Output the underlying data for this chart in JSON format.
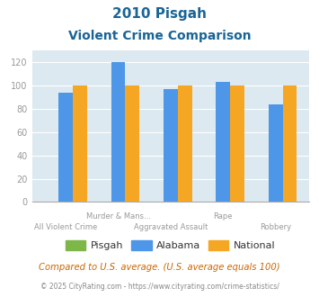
{
  "title_line1": "2010 Pisgah",
  "title_line2": "Violent Crime Comparison",
  "categories": [
    "All Violent Crime",
    "Murder & Mans...",
    "Aggravated Assault",
    "Rape",
    "Robbery"
  ],
  "pisgah_values": [
    0,
    0,
    0,
    0,
    0
  ],
  "alabama_values": [
    94,
    120,
    97,
    103,
    84
  ],
  "national_values": [
    100,
    100,
    100,
    100,
    100
  ],
  "pisgah_color": "#7db748",
  "alabama_color": "#4d96e8",
  "national_color": "#f5a623",
  "ylim": [
    0,
    130
  ],
  "yticks": [
    0,
    20,
    40,
    60,
    80,
    100,
    120
  ],
  "legend_labels": [
    "Pisgah",
    "Alabama",
    "National"
  ],
  "footnote1": "Compared to U.S. average. (U.S. average equals 100)",
  "footnote2": "© 2025 CityRating.com - https://www.cityrating.com/crime-statistics/",
  "bg_color": "#dce9f0",
  "fig_bg_color": "#ffffff",
  "title_color": "#1a6496",
  "footnote1_color": "#cc6600",
  "footnote2_color": "#888888",
  "tick_label_color": "#999999",
  "bar_width": 0.27
}
